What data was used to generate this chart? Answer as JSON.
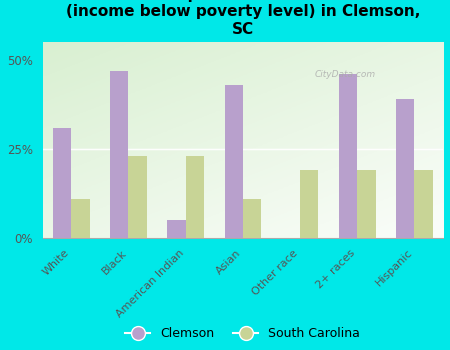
{
  "title": "Breakdown of poor residents within races\n(income below poverty level) in Clemson,\nSC",
  "categories": [
    "White",
    "Black",
    "American Indian",
    "Asian",
    "Other race",
    "2+ races",
    "Hispanic"
  ],
  "clemson_values": [
    31,
    47,
    5,
    43,
    0,
    46,
    39
  ],
  "sc_values": [
    11,
    23,
    23,
    11,
    19,
    19,
    19
  ],
  "clemson_color": "#b8a0cc",
  "sc_color": "#c8d496",
  "background_color": "#00e8e8",
  "plot_bg_color": "#e0f0d8",
  "yticks": [
    0,
    25,
    50
  ],
  "ylim": [
    0,
    55
  ],
  "bar_width": 0.32,
  "legend_labels": [
    "Clemson",
    "South Carolina"
  ],
  "watermark": "CityData.com",
  "title_fontsize": 11,
  "tick_fontsize": 8.5,
  "label_fontsize": 8
}
